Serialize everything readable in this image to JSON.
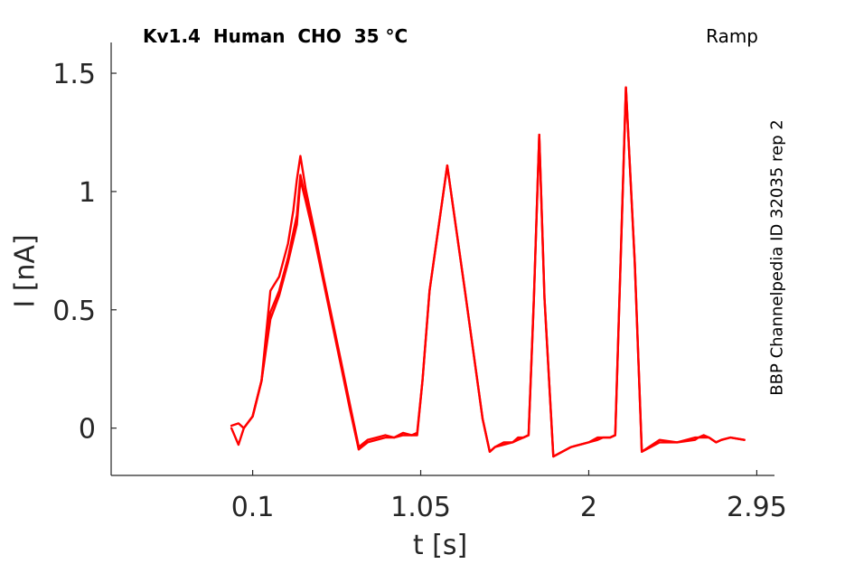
{
  "chart_data": {
    "type": "line",
    "title": "Kv1.4  Human  CHO  35 °C",
    "protocol": "Ramp",
    "side_label": "BBP Channelpedia ID 32035 rep 2",
    "xlabel": "t [s]",
    "ylabel": "I [nA]",
    "xlim": [
      -0.7,
      3.05
    ],
    "ylim": [
      -0.2,
      1.63
    ],
    "xticks": [
      0.1,
      1.05,
      2,
      2.95
    ],
    "xtick_labels": [
      "0.1",
      "1.05",
      "2",
      "2.95"
    ],
    "yticks": [
      0,
      0.5,
      1,
      1.5
    ],
    "ytick_labels": [
      "0",
      "0.5",
      "1",
      "1.5"
    ],
    "grid": false,
    "line_color": "#ff0000",
    "series": [
      {
        "x": [
          -0.02,
          0.02,
          0.05,
          0.07,
          0.1,
          0.15,
          0.2,
          0.25,
          0.3,
          0.33,
          0.35,
          0.37,
          0.4,
          0.45,
          0.5,
          0.55,
          0.6,
          0.65,
          0.7,
          0.75,
          0.8,
          0.85,
          0.9,
          0.95,
          1.0,
          1.03,
          1.06,
          1.1,
          1.2,
          1.3,
          1.4,
          1.44,
          1.47,
          1.52,
          1.57,
          1.6,
          1.63,
          1.66,
          1.69,
          1.72,
          1.75,
          1.8,
          1.9,
          2.0,
          2.05,
          2.08,
          2.12,
          2.15,
          2.18,
          2.21,
          2.26,
          2.3,
          2.4,
          2.5,
          2.6,
          2.62,
          2.65,
          2.68,
          2.7,
          2.72,
          2.75,
          2.8,
          2.88
        ],
        "y": [
          0.01,
          0.02,
          0.0,
          0.02,
          0.05,
          0.2,
          0.58,
          0.64,
          0.78,
          0.92,
          1.05,
          1.15,
          1.01,
          0.83,
          0.64,
          0.46,
          0.28,
          0.1,
          -0.08,
          -0.05,
          -0.04,
          -0.03,
          -0.04,
          -0.02,
          -0.03,
          -0.02,
          0.2,
          0.58,
          1.11,
          0.58,
          0.04,
          -0.1,
          -0.08,
          -0.06,
          -0.06,
          -0.04,
          -0.04,
          -0.03,
          0.55,
          1.24,
          0.55,
          -0.12,
          -0.08,
          -0.06,
          -0.04,
          -0.04,
          -0.04,
          -0.03,
          0.7,
          1.44,
          0.7,
          -0.1,
          -0.05,
          -0.06,
          -0.04,
          -0.04,
          -0.03,
          -0.04,
          -0.05,
          -0.06,
          -0.05,
          -0.04,
          -0.05
        ]
      },
      {
        "x": [
          -0.02,
          0.02,
          0.05,
          0.07,
          0.1,
          0.15,
          0.2,
          0.25,
          0.3,
          0.35,
          0.37,
          0.4,
          0.45,
          0.5,
          0.55,
          0.6,
          0.65,
          0.7,
          0.75,
          0.8,
          0.85,
          0.9,
          0.95,
          1.0,
          1.03,
          1.06,
          1.1,
          1.2,
          1.3,
          1.4,
          1.44,
          1.47,
          1.52,
          1.57,
          1.6,
          1.63,
          1.66,
          1.69,
          1.72,
          1.75,
          1.8,
          1.9,
          2.0,
          2.05,
          2.08,
          2.12,
          2.15,
          2.18,
          2.21,
          2.26,
          2.3,
          2.4,
          2.5,
          2.6,
          2.62,
          2.65,
          2.68,
          2.7,
          2.72,
          2.75,
          2.8,
          2.88
        ],
        "y": [
          0.0,
          -0.07,
          0.0,
          0.02,
          0.05,
          0.2,
          0.49,
          0.58,
          0.72,
          0.9,
          1.07,
          0.97,
          0.81,
          0.63,
          0.45,
          0.27,
          0.09,
          -0.09,
          -0.06,
          -0.05,
          -0.04,
          -0.04,
          -0.03,
          -0.03,
          -0.03,
          0.2,
          0.58,
          1.11,
          0.58,
          0.04,
          -0.1,
          -0.08,
          -0.07,
          -0.06,
          -0.05,
          -0.04,
          -0.03,
          0.55,
          1.24,
          0.55,
          -0.12,
          -0.08,
          -0.06,
          -0.05,
          -0.04,
          -0.04,
          -0.03,
          0.7,
          1.44,
          0.7,
          -0.1,
          -0.06,
          -0.06,
          -0.05,
          -0.04,
          -0.04,
          -0.04,
          -0.05,
          -0.06,
          -0.05,
          -0.04,
          -0.05
        ]
      },
      {
        "x": [
          0.1,
          0.15,
          0.2,
          0.25,
          0.3,
          0.35,
          0.37,
          0.4,
          0.45,
          0.5,
          0.55,
          0.6,
          0.65,
          0.7
        ],
        "y": [
          0.05,
          0.2,
          0.46,
          0.56,
          0.7,
          0.86,
          1.05,
          0.96,
          0.8,
          0.62,
          0.44,
          0.26,
          0.08,
          -0.09
        ]
      }
    ]
  }
}
